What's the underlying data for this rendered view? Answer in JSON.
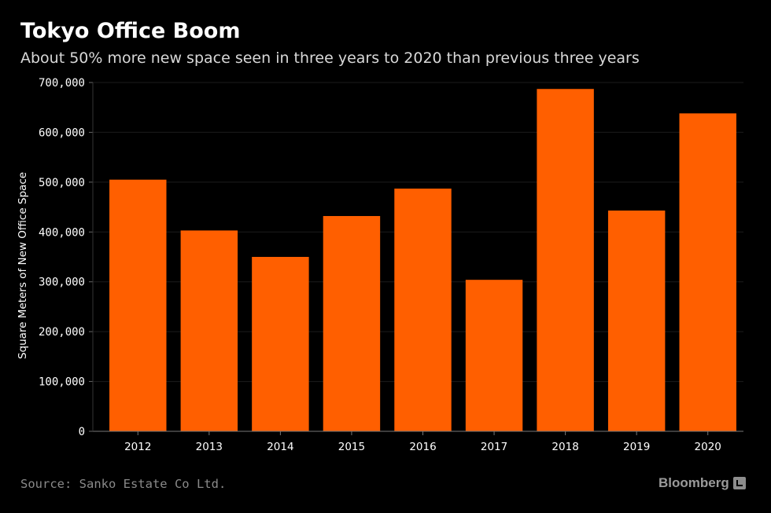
{
  "chart_data": {
    "type": "bar",
    "title": "Tokyo Office Boom",
    "subtitle": "About 50% more new space seen in three years to 2020 than previous three years",
    "xlabel": "",
    "ylabel": "Square Meters of New Office Space",
    "categories": [
      "2012",
      "2013",
      "2014",
      "2015",
      "2016",
      "2017",
      "2018",
      "2019",
      "2020"
    ],
    "values": [
      505000,
      403000,
      350000,
      432000,
      487000,
      304000,
      687000,
      443000,
      638000
    ],
    "ylim": [
      0,
      700000
    ],
    "yticks": [
      0,
      100000,
      200000,
      300000,
      400000,
      500000,
      600000,
      700000
    ],
    "ytick_labels": [
      "0",
      "100,000",
      "200,000",
      "300,000",
      "400,000",
      "500,000",
      "600,000",
      "700,000"
    ],
    "grid": true,
    "bar_color": "#FF5F00",
    "grid_color": "#1c1c1c"
  },
  "footer": {
    "source": "Source: Sanko Estate Co Ltd.",
    "brand": "Bloomberg"
  },
  "colors": {
    "background": "#000000",
    "text": "#ffffff",
    "muted": "#8a8a8a"
  }
}
